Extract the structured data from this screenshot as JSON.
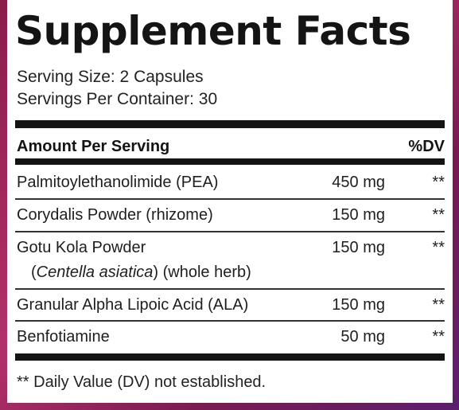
{
  "title": "Supplement Facts",
  "serving_size": "Serving Size: 2 Capsules",
  "servings_per_container": "Servings Per Container: 30",
  "header": {
    "amount_per_serving": "Amount Per Serving",
    "dv": "%DV"
  },
  "ingredients": [
    {
      "name": "Palmitoylethanolimide (PEA)",
      "amount": "450 mg",
      "dv": "**"
    },
    {
      "name": "Corydalis Powder (rhizome)",
      "amount": "150 mg",
      "dv": "**"
    },
    {
      "name": "Gotu Kola Powder",
      "sub_open": "(",
      "sub_italic": "Centella asiatica",
      "sub_close": ") (whole herb)",
      "amount": "150 mg",
      "dv": "**"
    },
    {
      "name": "Granular Alpha Lipoic Acid (ALA)",
      "amount": "150 mg",
      "dv": "**"
    },
    {
      "name": "Benfotiamine",
      "amount": "50 mg",
      "dv": "**"
    }
  ],
  "footnote": "** Daily Value (DV) not established."
}
